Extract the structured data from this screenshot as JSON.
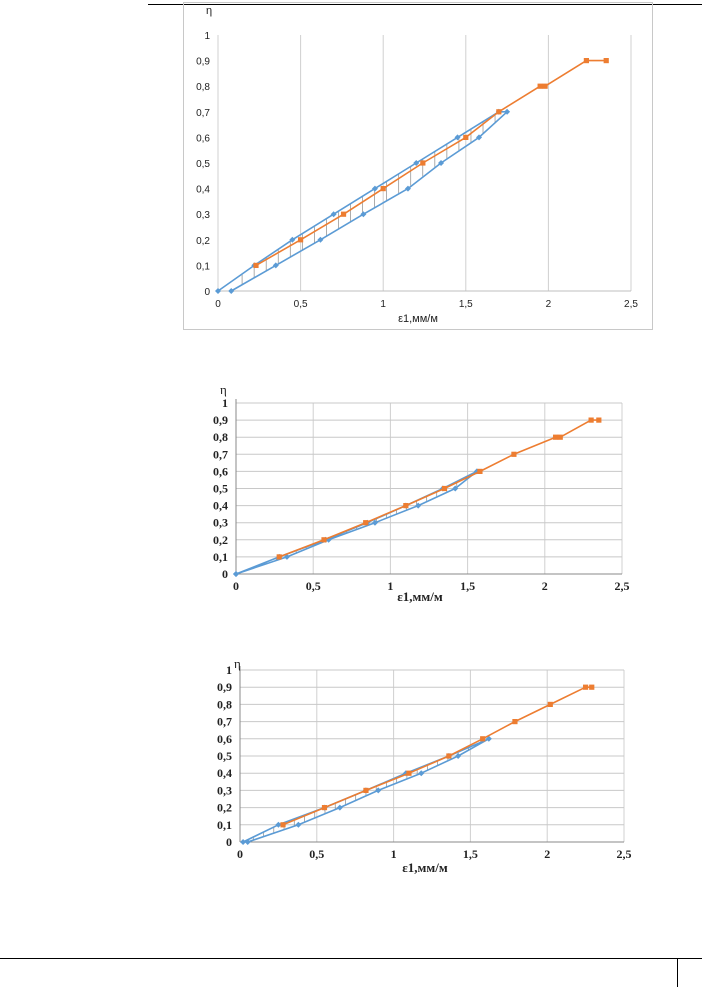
{
  "chart_data": [
    {
      "type": "line",
      "title": "",
      "ylabel": "η",
      "xlabel": "ε1,мм/м",
      "xlim": [
        0,
        2.5
      ],
      "ylim": [
        0,
        1
      ],
      "xticks": [
        "0",
        "0,5",
        "1",
        "1,5",
        "2",
        "2,5"
      ],
      "yticks": [
        "0",
        "0,1",
        "0,2",
        "0,3",
        "0,4",
        "0,5",
        "0,6",
        "0,7",
        "0,8",
        "0,9",
        "1"
      ],
      "grid": "vertical",
      "colors": {
        "blue": "#5b9bd5",
        "orange": "#ed7d31"
      },
      "series": [
        {
          "color": "blue",
          "points": [
            [
              0.0,
              0.0
            ],
            [
              0.22,
              0.1
            ],
            [
              0.45,
              0.2
            ],
            [
              0.7,
              0.3
            ],
            [
              0.95,
              0.4
            ],
            [
              1.2,
              0.5
            ],
            [
              1.45,
              0.6
            ],
            [
              1.7,
              0.7
            ],
            [
              1.75,
              0.7
            ],
            [
              1.58,
              0.6
            ],
            [
              1.35,
              0.5
            ],
            [
              1.15,
              0.4
            ],
            [
              0.88,
              0.3
            ],
            [
              0.62,
              0.2
            ],
            [
              0.35,
              0.1
            ],
            [
              0.08,
              0.0
            ]
          ]
        },
        {
          "color": "orange",
          "points": [
            [
              0.23,
              0.1
            ],
            [
              0.5,
              0.2
            ],
            [
              0.76,
              0.3
            ],
            [
              1.0,
              0.4
            ],
            [
              1.24,
              0.5
            ],
            [
              1.5,
              0.6
            ],
            [
              1.7,
              0.7
            ],
            [
              1.95,
              0.8
            ],
            [
              1.98,
              0.8
            ],
            [
              2.23,
              0.9
            ],
            [
              2.35,
              0.9
            ]
          ]
        }
      ]
    },
    {
      "type": "line",
      "title": "",
      "ylabel": "η",
      "xlabel": "ε1,мм/м",
      "xlim": [
        0,
        2.5
      ],
      "ylim": [
        0,
        1
      ],
      "xticks": [
        "0",
        "0,5",
        "1",
        "1,5",
        "2",
        "2,5"
      ],
      "yticks": [
        "0",
        "0,1",
        "0,2",
        "0,3",
        "0,4",
        "0,5",
        "0,6",
        "0,7",
        "0,8",
        "0,9",
        "1"
      ],
      "grid": "both",
      "colors": {
        "blue": "#5b9bd5",
        "orange": "#ed7d31"
      },
      "series": [
        {
          "color": "blue",
          "points": [
            [
              0.0,
              0.0
            ],
            [
              0.33,
              0.1
            ],
            [
              0.6,
              0.2
            ],
            [
              0.9,
              0.3
            ],
            [
              1.18,
              0.4
            ],
            [
              1.42,
              0.5
            ],
            [
              1.56,
              0.6
            ],
            [
              1.34,
              0.5
            ],
            [
              1.1,
              0.4
            ],
            [
              0.85,
              0.3
            ],
            [
              0.58,
              0.2
            ],
            [
              0.28,
              0.1
            ],
            [
              0.0,
              0.0
            ]
          ]
        },
        {
          "color": "orange",
          "points": [
            [
              0.28,
              0.1
            ],
            [
              0.57,
              0.2
            ],
            [
              0.84,
              0.3
            ],
            [
              1.1,
              0.4
            ],
            [
              1.35,
              0.5
            ],
            [
              1.58,
              0.6
            ],
            [
              1.8,
              0.7
            ],
            [
              2.07,
              0.8
            ],
            [
              2.1,
              0.8
            ],
            [
              2.3,
              0.9
            ],
            [
              2.35,
              0.9
            ]
          ]
        }
      ]
    },
    {
      "type": "line",
      "title": "",
      "ylabel": "η",
      "xlabel": "ε1,мм/м",
      "xlim": [
        0,
        2.5
      ],
      "ylim": [
        0,
        1
      ],
      "xticks": [
        "0",
        "0,5",
        "1",
        "1,5",
        "2",
        "2,5"
      ],
      "yticks": [
        "0",
        "0,1",
        "0,2",
        "0,3",
        "0,4",
        "0,5",
        "0,6",
        "0,7",
        "0,8",
        "0,9",
        "1"
      ],
      "grid": "both",
      "colors": {
        "blue": "#5b9bd5",
        "orange": "#ed7d31"
      },
      "series": [
        {
          "color": "blue",
          "points": [
            [
              0.02,
              0.0
            ],
            [
              0.25,
              0.1
            ],
            [
              0.55,
              0.2
            ],
            [
              0.82,
              0.3
            ],
            [
              1.08,
              0.4
            ],
            [
              1.36,
              0.5
            ],
            [
              1.62,
              0.6
            ],
            [
              1.42,
              0.5
            ],
            [
              1.18,
              0.4
            ],
            [
              0.9,
              0.3
            ],
            [
              0.65,
              0.2
            ],
            [
              0.38,
              0.1
            ],
            [
              0.05,
              0.0
            ]
          ]
        },
        {
          "color": "orange",
          "points": [
            [
              0.28,
              0.1
            ],
            [
              0.55,
              0.2
            ],
            [
              0.82,
              0.3
            ],
            [
              1.1,
              0.4
            ],
            [
              1.36,
              0.5
            ],
            [
              1.58,
              0.6
            ],
            [
              1.79,
              0.7
            ],
            [
              2.02,
              0.8
            ],
            [
              2.25,
              0.9
            ],
            [
              2.29,
              0.9
            ]
          ]
        }
      ]
    }
  ]
}
